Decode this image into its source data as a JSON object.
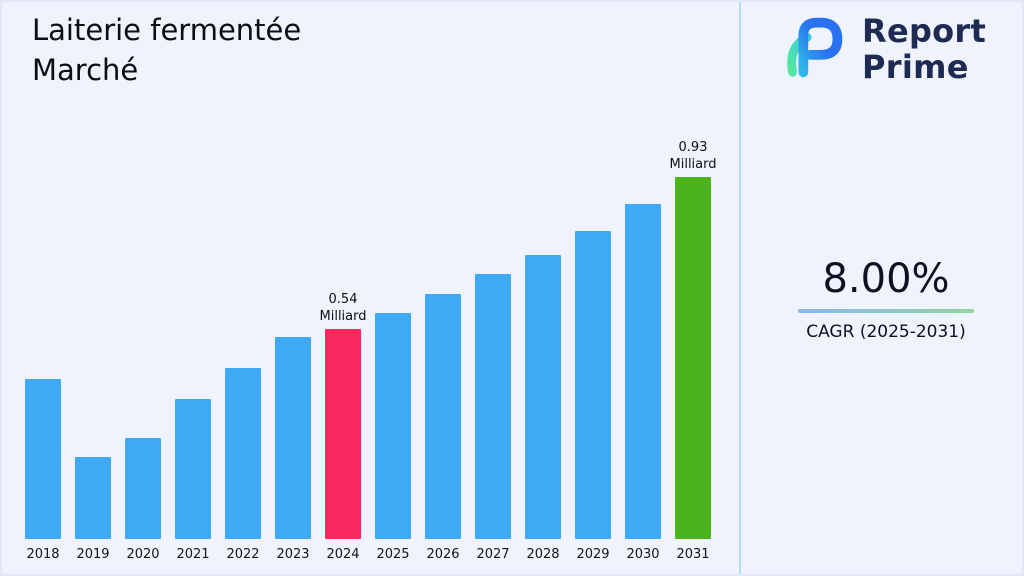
{
  "header": {
    "title_line1": "Laiterie fermentée",
    "title_line2": "Marché"
  },
  "logo": {
    "brand_line1": "Report",
    "brand_line2": "Prime"
  },
  "cagr": {
    "value": "8.00%",
    "label": "CAGR (2025-2031)"
  },
  "chart_data": {
    "type": "bar",
    "title": "Laiterie fermentée Marché",
    "xlabel": "",
    "ylabel": "",
    "unit": "Milliard",
    "grid": false,
    "legend": false,
    "ylim": [
      0,
      0.95
    ],
    "categories": [
      "2018",
      "2019",
      "2020",
      "2021",
      "2022",
      "2023",
      "2024",
      "2025",
      "2026",
      "2027",
      "2028",
      "2029",
      "2030",
      "2031"
    ],
    "values": [
      0.41,
      0.21,
      0.26,
      0.36,
      0.44,
      0.52,
      0.54,
      0.58,
      0.63,
      0.68,
      0.73,
      0.79,
      0.86,
      0.93
    ],
    "bar_color": "#3fa9f5",
    "highlight_bars": [
      {
        "category": "2024",
        "color": "#f8295f",
        "label_line1": "0.54",
        "label_line2": "Milliard"
      },
      {
        "category": "2031",
        "color": "#4db31c",
        "label_line1": "0.93",
        "label_line2": "Milliard"
      }
    ]
  },
  "colors": {
    "background": "#eef3fd",
    "divider": "#b3ddf2",
    "underline_from": "#8ab6f7",
    "underline_to": "#8fd89b",
    "brand_navy": "#1d2a52",
    "text_dark": "#0c0d15"
  }
}
